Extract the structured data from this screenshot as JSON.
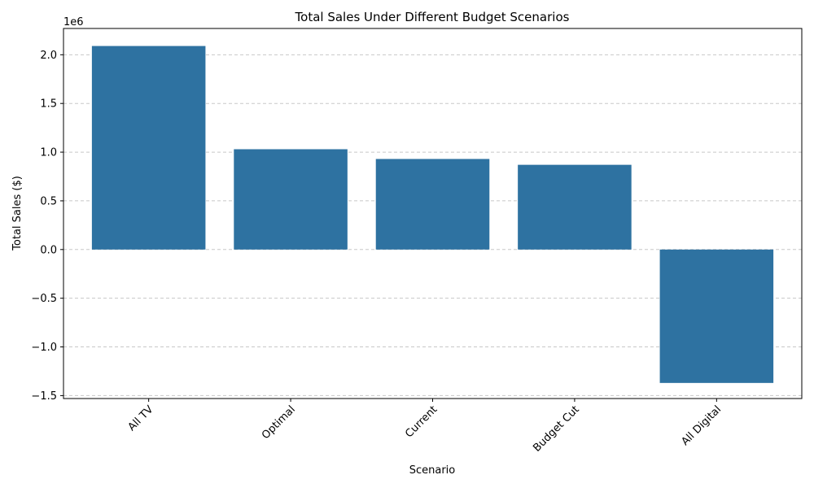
{
  "chart_data": {
    "type": "bar",
    "title": "Total Sales Under Different Budget Scenarios",
    "xlabel": "Scenario",
    "ylabel": "Total Sales ($)",
    "y_offset_label": "1e6",
    "categories": [
      "All TV",
      "Optimal",
      "Current",
      "Budget Cut",
      "All Digital"
    ],
    "values": [
      2.09,
      1.03,
      0.93,
      0.87,
      -1.37
    ],
    "ylim": [
      -1.53,
      2.27
    ],
    "yticks": [
      -1.5,
      -1.0,
      -0.5,
      0.0,
      0.5,
      1.0,
      1.5,
      2.0
    ],
    "ytick_labels": [
      "−1.5",
      "−1.0",
      "−0.5",
      "0.0",
      "0.5",
      "1.0",
      "1.5",
      "2.0"
    ],
    "x_tick_rotation": 45,
    "grid": "y-dashed",
    "bar_color": "#2e72a1",
    "grid_color": "#c8c8c8"
  }
}
